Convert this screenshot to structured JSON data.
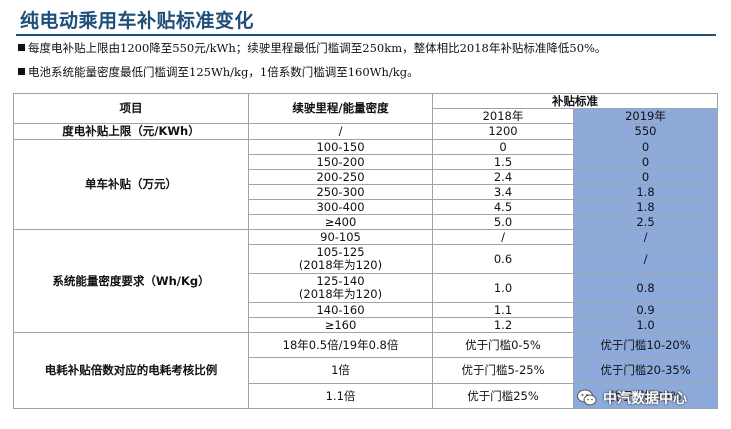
{
  "title": "纯电动乘用车补贴标准变化",
  "bullets": [
    "每度电补贴上限由1200降至550元/kWh；续驶里程最低门槛调至250km，整体相比2018年补贴标准降低50%。",
    "电池系统能量密度最低门槛调至125Wh/kg，1倍系数门槛调至160Wh/kg。"
  ],
  "table": {
    "header": {
      "item": "项目",
      "range": "续驶里程/能量密度",
      "standard": "补贴标准",
      "y2018": "2018年",
      "y2019": "2019年"
    },
    "rows": {
      "cap": {
        "label": "度电补贴上限（元/KWh）",
        "range": "/",
        "v2018": "1200",
        "v2019": "550"
      },
      "single": {
        "label": "单车补贴（万元）",
        "rows": [
          {
            "range": "100-150",
            "v2018": "0",
            "v2019": "0"
          },
          {
            "range": "150-200",
            "v2018": "1.5",
            "v2019": "0"
          },
          {
            "range": "200-250",
            "v2018": "2.4",
            "v2019": "0"
          },
          {
            "range": "250-300",
            "v2018": "3.4",
            "v2019": "1.8"
          },
          {
            "range": "300-400",
            "v2018": "4.5",
            "v2019": "1.8"
          },
          {
            "range": "≥400",
            "v2018": "5.0",
            "v2019": "2.5"
          }
        ]
      },
      "density": {
        "label": "系统能量密度要求（Wh/Kg）",
        "rows": [
          {
            "range": "90-105",
            "note": "",
            "v2018": "/",
            "v2019": "/"
          },
          {
            "range": "105-125",
            "note": "(2018年为120)",
            "v2018": "0.6",
            "v2019": "/"
          },
          {
            "range": "125-140",
            "note": "(2018年为120)",
            "v2018": "1.0",
            "v2019": "0.8"
          },
          {
            "range": "140-160",
            "note": "",
            "v2018": "1.1",
            "v2019": "0.9"
          },
          {
            "range": "≥160",
            "note": "",
            "v2018": "1.2",
            "v2019": "1.0"
          }
        ]
      },
      "consumption": {
        "label": "电耗补贴倍数对应的电耗考核比例",
        "rows": [
          {
            "range": "18年0.5倍/19年0.8倍",
            "v2018": "优于门槛0-5%",
            "v2019": "优于门槛10-20%"
          },
          {
            "range": "1倍",
            "v2018": "优于门槛5-25%",
            "v2019": "优于门槛20-35%"
          },
          {
            "range": "1.1倍",
            "v2018": "优于门槛25%",
            "v2019": "优于门槛35%"
          }
        ]
      }
    }
  },
  "watermark": {
    "text": "中汽数据中心",
    "icon": "wechat-icon"
  },
  "colors": {
    "title": "#1f4e79",
    "highlight": "#8eaadb",
    "border": "#9aa5b4"
  }
}
